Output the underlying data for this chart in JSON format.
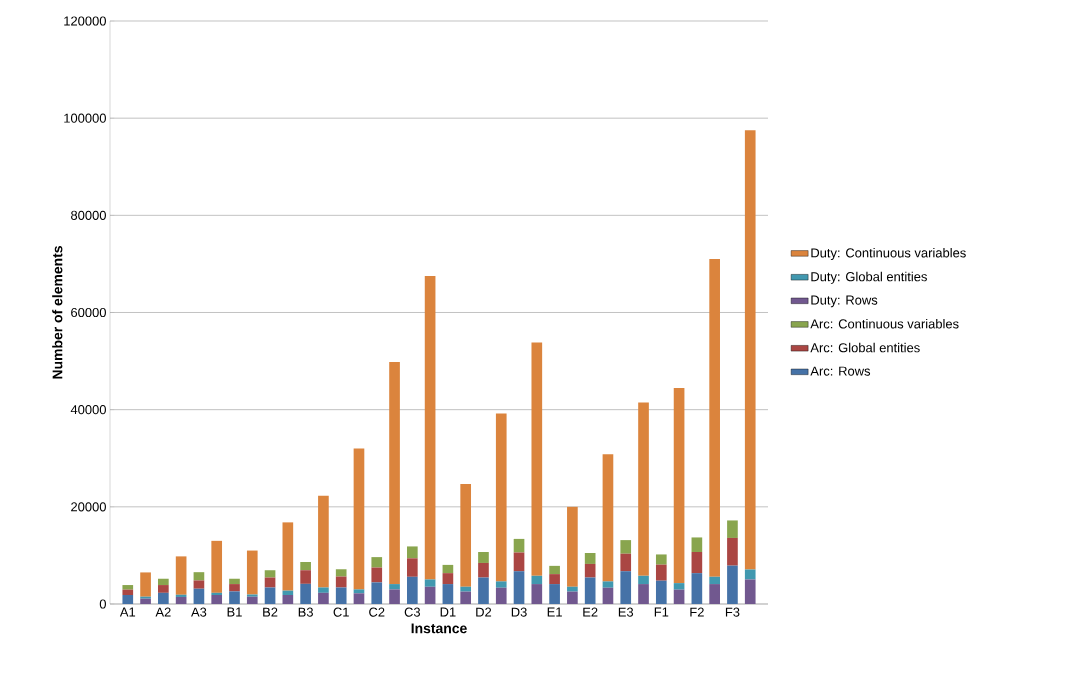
{
  "chart_data": {
    "type": "bar",
    "stacked": true,
    "xlabel": "Instance",
    "ylabel": "Number of elements",
    "categories": [
      "A1",
      null,
      "A2",
      null,
      "A3",
      null,
      "B1",
      null,
      "B2",
      null,
      "B3",
      null,
      "C1",
      null,
      "C2",
      null,
      "C3",
      null,
      "D1",
      null,
      "D2",
      null,
      "D3",
      null,
      "E1",
      null,
      "E2",
      null,
      "E3",
      null,
      "F1",
      null,
      "F2",
      null,
      "F3",
      null
    ],
    "ylim": [
      0,
      120000
    ],
    "yticks": [
      0,
      20000,
      40000,
      60000,
      80000,
      100000,
      120000
    ],
    "grid": "y",
    "legend": "right",
    "series": [
      {
        "name": "Arc: Rows",
        "color": "#4572a7",
        "values": [
          1850,
          null,
          2300,
          null,
          3150,
          null,
          2600,
          null,
          3400,
          null,
          4150,
          null,
          3400,
          null,
          4450,
          null,
          5600,
          null,
          4100,
          null,
          5450,
          null,
          6750,
          null,
          4100,
          null,
          5450,
          null,
          6750,
          null,
          4800,
          null,
          6350,
          null,
          7900,
          null
        ]
      },
      {
        "name": "Arc: Global entities",
        "color": "#aa4643",
        "values": [
          1100,
          null,
          1600,
          null,
          1700,
          null,
          1500,
          null,
          2050,
          null,
          2800,
          null,
          2250,
          null,
          3050,
          null,
          3800,
          null,
          2250,
          null,
          3000,
          null,
          3850,
          null,
          2050,
          null,
          2800,
          null,
          3600,
          null,
          3300,
          null,
          4350,
          null,
          5700,
          null
        ]
      },
      {
        "name": "Arc: Continuous variables",
        "color": "#89a54e",
        "values": [
          950,
          null,
          1300,
          null,
          1700,
          null,
          1100,
          null,
          1500,
          null,
          1700,
          null,
          1500,
          null,
          2150,
          null,
          2450,
          null,
          1700,
          null,
          2250,
          null,
          2800,
          null,
          1700,
          null,
          2250,
          null,
          2800,
          null,
          2100,
          null,
          3000,
          null,
          3600,
          null
        ]
      },
      {
        "name": "Duty: Rows",
        "color": "#71588f",
        "values": [
          null,
          1100,
          null,
          1450,
          null,
          1850,
          null,
          1500,
          null,
          1850,
          null,
          2300,
          null,
          2200,
          null,
          3000,
          null,
          3550,
          null,
          2550,
          null,
          3350,
          null,
          4100,
          null,
          2550,
          null,
          3350,
          null,
          4100,
          null,
          2950,
          null,
          4100,
          null,
          5050
        ]
      },
      {
        "name": "Duty: Global entities",
        "color": "#4198af",
        "values": [
          null,
          400,
          null,
          450,
          null,
          450,
          null,
          450,
          null,
          900,
          null,
          1100,
          null,
          800,
          null,
          1100,
          null,
          1500,
          null,
          1000,
          null,
          1300,
          null,
          1700,
          null,
          1000,
          null,
          1300,
          null,
          1700,
          null,
          1350,
          null,
          1500,
          null,
          2050
        ]
      },
      {
        "name": "Duty: Continuous variables",
        "color": "#db843d",
        "values": [
          null,
          5000,
          null,
          7900,
          null,
          10700,
          null,
          9050,
          null,
          14050,
          null,
          18900,
          null,
          29000,
          null,
          45700,
          null,
          62450,
          null,
          21150,
          null,
          34550,
          null,
          48000,
          null,
          16450,
          null,
          26150,
          null,
          35700,
          null,
          40150,
          null,
          65400,
          null,
          90400
        ]
      }
    ]
  }
}
